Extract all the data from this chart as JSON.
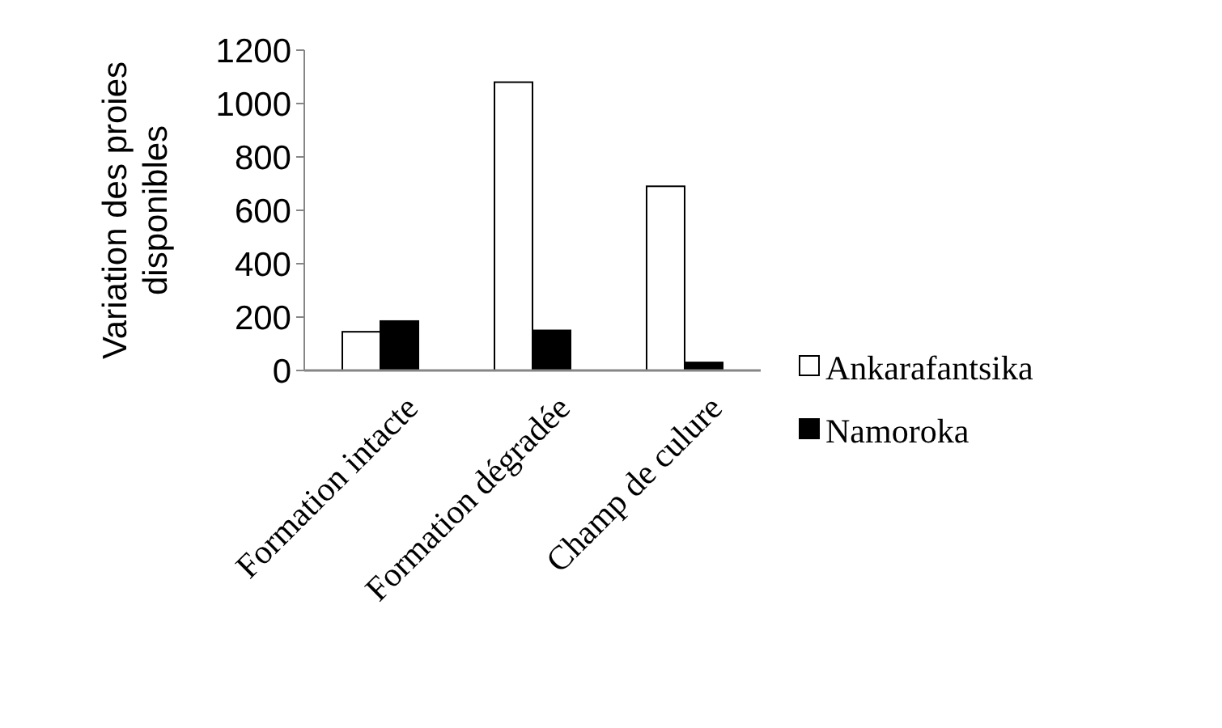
{
  "chart_data": {
    "type": "bar",
    "ylabel": "Variation des proies disponibles",
    "categories": [
      "Formation intacte",
      "Formation dégradée",
      "Champ de culure"
    ],
    "series": [
      {
        "name": "Ankarafantsika",
        "color": "#ffffff",
        "values": [
          145,
          1080,
          690
        ]
      },
      {
        "name": "Namoroka",
        "color": "#000000",
        "values": [
          185,
          150,
          30
        ]
      }
    ],
    "ylim": [
      0,
      1200
    ],
    "yticks": [
      0,
      200,
      400,
      600,
      800,
      1000,
      1200
    ],
    "grid": false,
    "legend": "right"
  }
}
